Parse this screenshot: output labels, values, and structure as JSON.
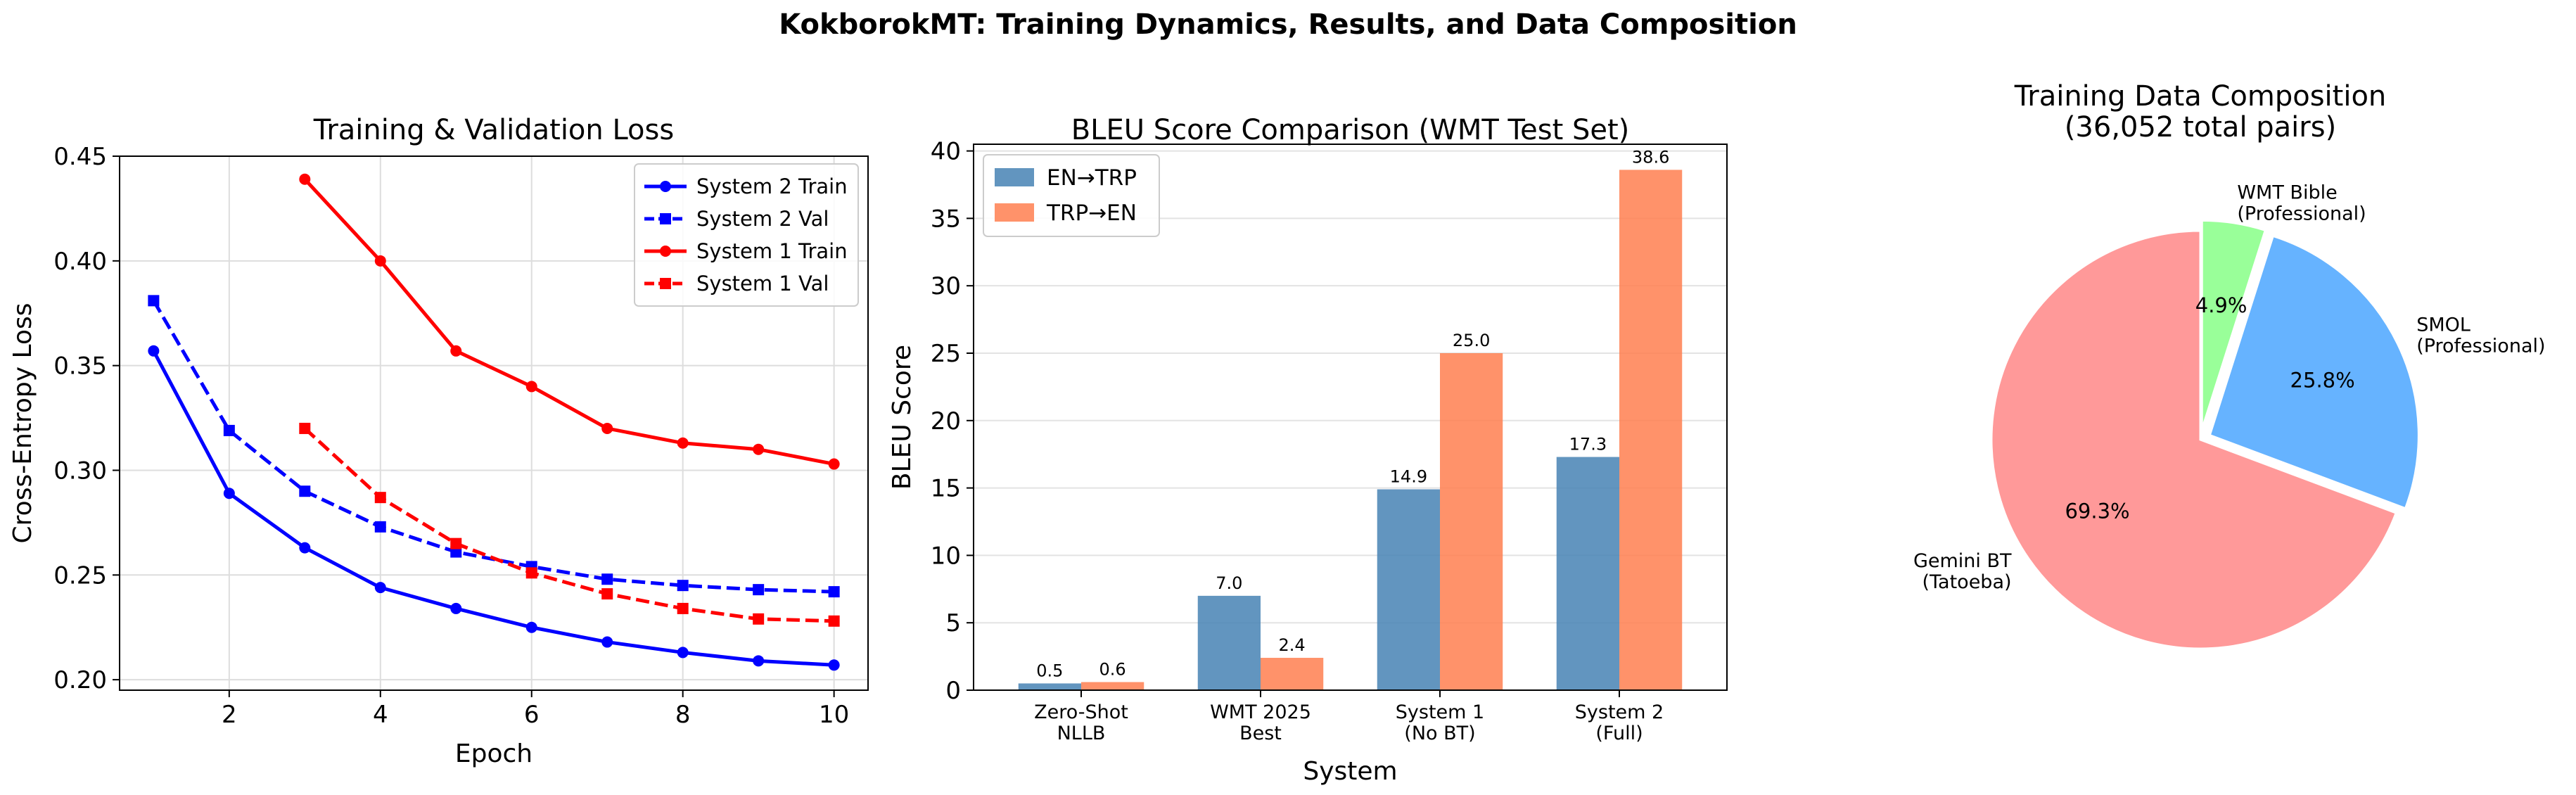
{
  "suptitle": "KokborokMT: Training Dynamics, Results, and Data Composition",
  "chart_data": [
    {
      "type": "line",
      "title": "Training & Validation Loss",
      "xlabel": "Epoch",
      "ylabel": "Cross-Entropy Loss",
      "xlim": [
        0.55,
        10.45
      ],
      "ylim": [
        0.195,
        0.45
      ],
      "xticks": [
        2,
        4,
        6,
        8,
        10
      ],
      "yticks": [
        0.2,
        0.25,
        0.3,
        0.35,
        0.4,
        0.45
      ],
      "grid": true,
      "legend_position": "top-right",
      "series": [
        {
          "name": "System 2 Train",
          "color": "#0000ff",
          "linestyle": "solid",
          "marker": "circle",
          "x": [
            1,
            2,
            3,
            4,
            5,
            6,
            7,
            8,
            9,
            10
          ],
          "y": [
            0.357,
            0.289,
            0.263,
            0.244,
            0.234,
            0.225,
            0.218,
            0.213,
            0.209,
            0.207
          ]
        },
        {
          "name": "System 2 Val",
          "color": "#0000ff",
          "linestyle": "dashed",
          "marker": "square",
          "x": [
            1,
            2,
            3,
            4,
            5,
            6,
            7,
            8,
            9,
            10
          ],
          "y": [
            0.381,
            0.319,
            0.29,
            0.273,
            0.261,
            0.254,
            0.248,
            0.245,
            0.243,
            0.242
          ]
        },
        {
          "name": "System 1 Train",
          "color": "#ff0000",
          "linestyle": "solid",
          "marker": "circle",
          "x": [
            3,
            4,
            5,
            6,
            7,
            8,
            9,
            10
          ],
          "y": [
            0.439,
            0.4,
            0.357,
            0.34,
            0.32,
            0.313,
            0.31,
            0.303
          ]
        },
        {
          "name": "System 1 Val",
          "color": "#ff0000",
          "linestyle": "dashed",
          "marker": "square",
          "x": [
            3,
            4,
            5,
            6,
            7,
            8,
            9,
            10
          ],
          "y": [
            0.32,
            0.287,
            0.265,
            0.251,
            0.241,
            0.234,
            0.229,
            0.228
          ]
        }
      ]
    },
    {
      "type": "bar",
      "title": "BLEU Score Comparison (WMT Test Set)",
      "xlabel": "System",
      "ylabel": "BLEU Score",
      "ylim": [
        0,
        40.5
      ],
      "yticks": [
        0,
        5,
        10,
        15,
        20,
        25,
        30,
        35,
        40
      ],
      "grid": true,
      "legend_position": "top-left",
      "categories": [
        [
          "Zero-Shot",
          "NLLB"
        ],
        [
          "WMT 2025",
          "Best"
        ],
        [
          "System 1",
          "(No BT)"
        ],
        [
          "System 2",
          "(Full)"
        ]
      ],
      "series": [
        {
          "name": "EN→TRP",
          "color": "#4682b4",
          "values": [
            0.5,
            7.0,
            14.9,
            17.3
          ],
          "labels": [
            "0.5",
            "7.0",
            "14.9",
            "17.3"
          ]
        },
        {
          "name": "TRP→EN",
          "color": "#ff7f50",
          "values": [
            0.6,
            2.4,
            25.0,
            38.6
          ],
          "labels": [
            "0.6",
            "2.4",
            "25.0",
            "38.6"
          ]
        }
      ]
    },
    {
      "type": "pie",
      "title_lines": [
        "Training Data Composition",
        "(36,052 total pairs)"
      ],
      "start_angle_deg": 90,
      "slices": [
        {
          "label_lines": [
            "Gemini BT",
            "(Tatoeba)"
          ],
          "value": 69.3,
          "pct": "69.3%",
          "color": "#ff9999",
          "explode": 0
        },
        {
          "label_lines": [
            "SMOL",
            "(Professional)"
          ],
          "value": 25.8,
          "pct": "25.8%",
          "color": "#66b3ff",
          "explode": 0.05
        },
        {
          "label_lines": [
            "WMT Bible",
            "(Professional)"
          ],
          "value": 4.9,
          "pct": "4.9%",
          "color": "#99ff99",
          "explode": 0.05
        }
      ]
    }
  ]
}
